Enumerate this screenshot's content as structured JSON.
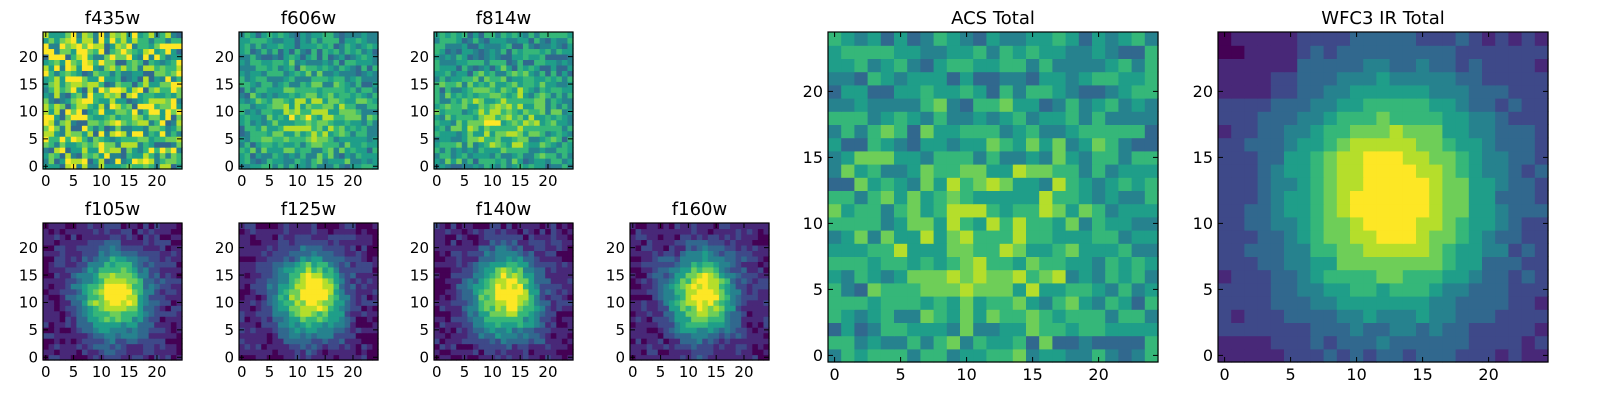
{
  "chart_data": [
    {
      "type": "heatmap",
      "title": "f435w",
      "model": "noise",
      "seed": 11,
      "xticks": [
        0,
        5,
        10,
        15,
        20
      ],
      "yticks": [
        0,
        5,
        10,
        15,
        20
      ],
      "xlim": [
        0,
        24
      ],
      "ylim": [
        0,
        24
      ]
    },
    {
      "type": "heatmap",
      "title": "f606w",
      "model": "faint",
      "seed": 23,
      "xticks": [
        0,
        5,
        10,
        15,
        20
      ],
      "yticks": [
        0,
        5,
        10,
        15,
        20
      ],
      "xlim": [
        0,
        24
      ],
      "ylim": [
        0,
        24
      ]
    },
    {
      "type": "heatmap",
      "title": "f814w",
      "model": "faint",
      "seed": 37,
      "xticks": [
        0,
        5,
        10,
        15,
        20
      ],
      "yticks": [
        0,
        5,
        10,
        15,
        20
      ],
      "xlim": [
        0,
        24
      ],
      "ylim": [
        0,
        24
      ]
    },
    {
      "type": "heatmap",
      "title": "f105w",
      "model": "galaxy",
      "seed": 41,
      "xticks": [
        0,
        5,
        10,
        15,
        20
      ],
      "yticks": [
        0,
        5,
        10,
        15,
        20
      ],
      "xlim": [
        0,
        24
      ],
      "ylim": [
        0,
        24
      ]
    },
    {
      "type": "heatmap",
      "title": "f125w",
      "model": "galaxy",
      "seed": 53,
      "xticks": [
        0,
        5,
        10,
        15,
        20
      ],
      "yticks": [
        0,
        5,
        10,
        15,
        20
      ],
      "xlim": [
        0,
        24
      ],
      "ylim": [
        0,
        24
      ]
    },
    {
      "type": "heatmap",
      "title": "f140w",
      "model": "galaxy",
      "seed": 67,
      "xticks": [
        0,
        5,
        10,
        15,
        20
      ],
      "yticks": [
        0,
        5,
        10,
        15,
        20
      ],
      "xlim": [
        0,
        24
      ],
      "ylim": [
        0,
        24
      ]
    },
    {
      "type": "heatmap",
      "title": "f160w",
      "model": "galaxy",
      "seed": 71,
      "xticks": [
        0,
        5,
        10,
        15,
        20
      ],
      "yticks": [
        0,
        5,
        10,
        15,
        20
      ],
      "xlim": [
        0,
        24
      ],
      "ylim": [
        0,
        24
      ]
    },
    {
      "type": "heatmap",
      "title": "ACS Total",
      "model": "faint",
      "seed": 83,
      "xticks": [
        0,
        5,
        10,
        15,
        20
      ],
      "yticks": [
        0,
        5,
        10,
        15,
        20
      ],
      "xlim": [
        0,
        24
      ],
      "ylim": [
        0,
        24
      ]
    },
    {
      "type": "heatmap",
      "title": "WFC3 IR Total",
      "model": "smooth",
      "seed": 97,
      "xticks": [
        0,
        5,
        10,
        15,
        20
      ],
      "yticks": [
        0,
        5,
        10,
        15,
        20
      ],
      "xlim": [
        0,
        24
      ],
      "ylim": [
        0,
        24
      ]
    }
  ],
  "colormap": [
    "#440154",
    "#482878",
    "#3e4989",
    "#31688e",
    "#26828e",
    "#1f9e89",
    "#35b779",
    "#6ece58",
    "#b5de2b",
    "#fde725"
  ]
}
